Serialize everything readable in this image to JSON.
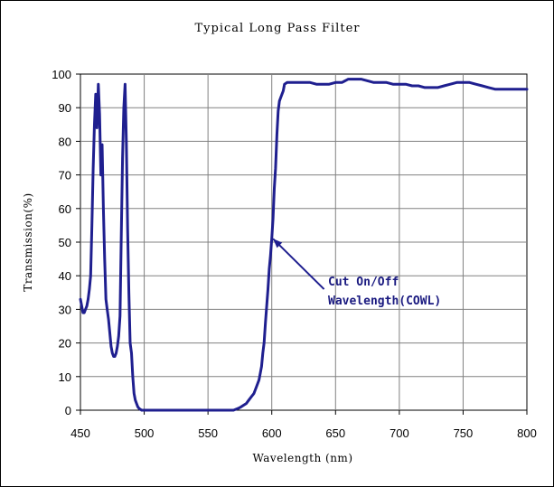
{
  "chart_data": {
    "type": "line",
    "title": "Typical Long Pass Filter",
    "xlabel": "Wavelength (nm)",
    "ylabel": "Transmission(%)",
    "xlim": [
      450,
      800
    ],
    "ylim": [
      0,
      100
    ],
    "xticks": [
      450,
      500,
      550,
      600,
      650,
      700,
      750,
      800
    ],
    "yticks": [
      0,
      10,
      20,
      30,
      40,
      50,
      60,
      70,
      80,
      90,
      100
    ],
    "grid": true,
    "legend": "none",
    "line_color": "#1f1f8f",
    "annotation": {
      "lines": [
        "Cut On/Off",
        "Wavelength(COWL)"
      ],
      "points_to": [
        601,
        51
      ],
      "text_at": [
        641,
        36
      ]
    },
    "series": [
      {
        "x": [
          450,
          451,
          452,
          453,
          454,
          455,
          456,
          457,
          458,
          459,
          460,
          461,
          462,
          463,
          464,
          465,
          466,
          467,
          468,
          469,
          470,
          471,
          472,
          473,
          474,
          475,
          476,
          477,
          478,
          479,
          480,
          481,
          482,
          483,
          484,
          485,
          486,
          487,
          488,
          489,
          490,
          491,
          492,
          493,
          494,
          495,
          496,
          498,
          500,
          505,
          510,
          520,
          530,
          540,
          550,
          560,
          565,
          570,
          572,
          574,
          576,
          578,
          580,
          582,
          584,
          586,
          588,
          590,
          591,
          592,
          593,
          594,
          595,
          596,
          597,
          598,
          599,
          600,
          601,
          602,
          603,
          604,
          605,
          606,
          607,
          608,
          609,
          610,
          612,
          615,
          620,
          625,
          630,
          635,
          640,
          645,
          650,
          655,
          660,
          665,
          670,
          675,
          680,
          685,
          690,
          695,
          700,
          705,
          710,
          715,
          720,
          725,
          730,
          735,
          740,
          745,
          750,
          755,
          760,
          765,
          770,
          775,
          780,
          785,
          790,
          795,
          800
        ],
        "y": [
          33,
          31,
          29,
          29,
          30,
          31,
          33,
          36,
          40,
          55,
          72,
          85,
          94,
          84,
          97,
          88,
          70,
          79,
          60,
          45,
          33,
          30,
          27,
          23,
          19,
          17,
          16,
          16,
          17,
          19,
          22,
          28,
          52,
          75,
          90,
          97,
          80,
          54,
          35,
          20,
          17,
          10,
          5,
          3,
          2,
          1,
          0.5,
          0,
          0,
          0,
          0,
          0,
          0,
          0,
          0,
          0,
          0,
          0,
          0.3,
          0.6,
          1,
          1.5,
          2,
          3,
          4,
          5,
          7,
          9,
          11,
          13,
          17,
          20,
          26,
          31,
          36,
          42,
          46,
          51,
          57,
          66,
          72,
          82,
          89,
          92,
          93,
          94,
          95,
          97,
          97.5,
          97.5,
          97.5,
          97.5,
          97.5,
          97,
          97,
          97,
          97.5,
          97.5,
          98.5,
          98.5,
          98.5,
          98,
          97.5,
          97.5,
          97.5,
          97,
          97,
          97,
          96.5,
          96.5,
          96,
          96,
          96,
          96.5,
          97,
          97.5,
          97.5,
          97.5,
          97,
          96.5,
          96,
          95.5,
          95.5,
          95.5,
          95.5,
          95.5,
          95.5
        ]
      }
    ]
  }
}
